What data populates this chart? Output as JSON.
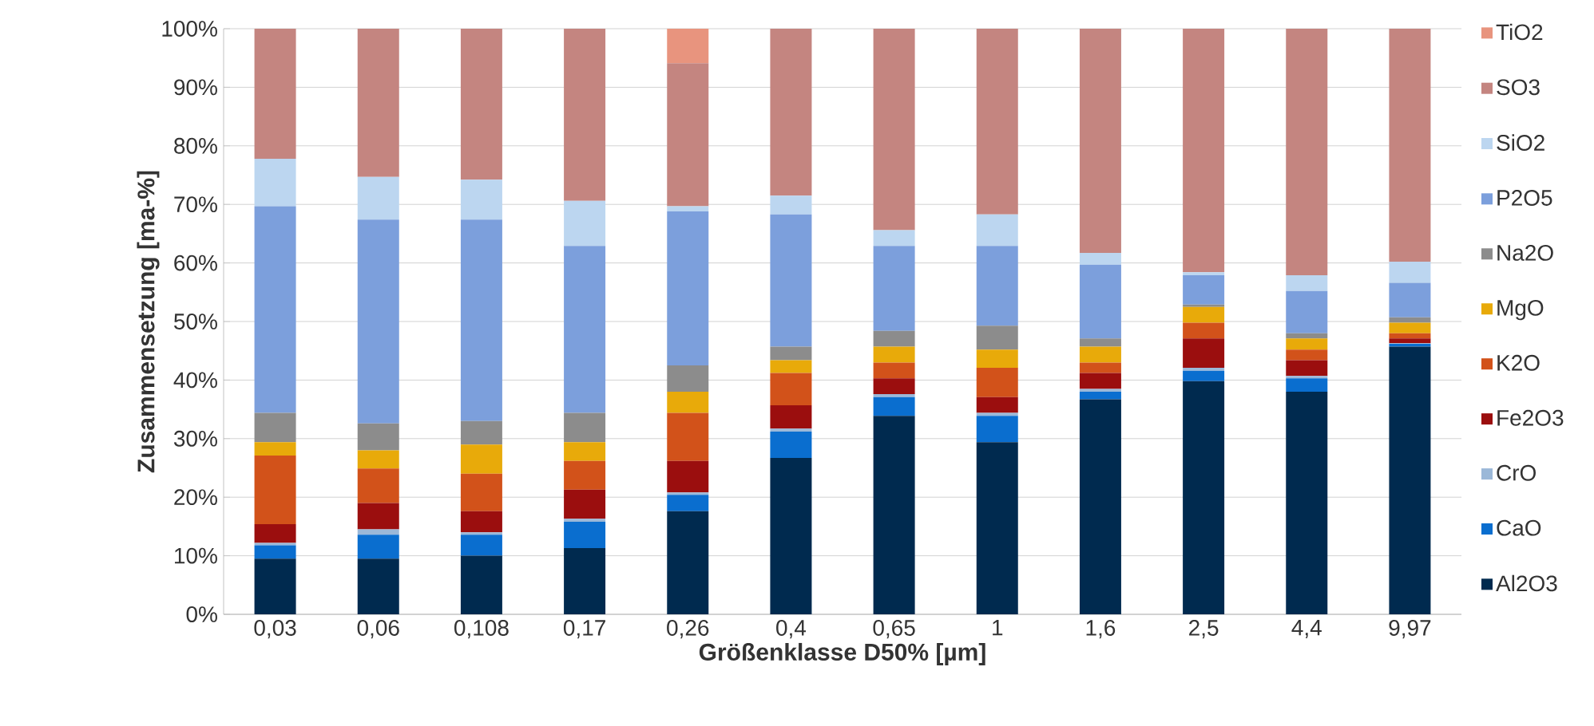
{
  "chart_data": {
    "type": "bar",
    "stacked": true,
    "xlabel": "Größenklasse D50% [µm]",
    "ylabel": "Zusammensetzung [ma-%]",
    "categories": [
      "0,03",
      "0,06",
      "0,108",
      "0,17",
      "0,26",
      "0,4",
      "0,65",
      "1",
      "1,6",
      "2,5",
      "4,4",
      "9,97"
    ],
    "ylim": [
      0,
      100
    ],
    "yticks": [
      {
        "value": 0,
        "label": "0%"
      },
      {
        "value": 10,
        "label": "10%"
      },
      {
        "value": 20,
        "label": "20%"
      },
      {
        "value": 30,
        "label": "30%"
      },
      {
        "value": 40,
        "label": "40%"
      },
      {
        "value": 50,
        "label": "50%"
      },
      {
        "value": 60,
        "label": "60%"
      },
      {
        "value": 70,
        "label": "70%"
      },
      {
        "value": 80,
        "label": "80%"
      },
      {
        "value": 90,
        "label": "90%"
      },
      {
        "value": 100,
        "label": "100%"
      }
    ],
    "grid": "y",
    "legend": "right",
    "series": [
      {
        "name": "Al2O3",
        "color": "#002a4f",
        "values": [
          9.5,
          9.5,
          10,
          11.3,
          17.6,
          26.7,
          33.9,
          29.4,
          36.7,
          39.8,
          38,
          45.7
        ]
      },
      {
        "name": "CaO",
        "color": "#0a6ecf",
        "values": [
          2.3,
          4.1,
          3.6,
          4.5,
          2.8,
          4.5,
          3.2,
          4.5,
          1.3,
          1.8,
          2.3,
          0.5
        ]
      },
      {
        "name": "CrO",
        "color": "#9bb8d8",
        "values": [
          0.4,
          0.9,
          0.4,
          0.5,
          0.4,
          0.5,
          0.5,
          0.5,
          0.5,
          0.5,
          0.4,
          0.1
        ]
      },
      {
        "name": "Fe2O3",
        "color": "#9b0e0e",
        "values": [
          3.2,
          4.5,
          3.6,
          5,
          5.4,
          4,
          2.7,
          2.7,
          2.7,
          5,
          2.7,
          0.8
        ]
      },
      {
        "name": "K2O",
        "color": "#d2521a",
        "values": [
          11.7,
          5.9,
          6.4,
          4.9,
          8.2,
          5.5,
          2.7,
          5,
          1.8,
          2.7,
          1.8,
          0.9
        ]
      },
      {
        "name": "MgO",
        "color": "#e8aa0a",
        "values": [
          2.3,
          3.1,
          5,
          3.2,
          3.6,
          2.2,
          2.7,
          3.1,
          2.7,
          2.7,
          1.9,
          1.8
        ]
      },
      {
        "name": "Na2O",
        "color": "#8c8c8c",
        "values": [
          5,
          4.6,
          4,
          5,
          4.5,
          2.3,
          2.7,
          4.1,
          1.4,
          0.4,
          0.9,
          0.9
        ]
      },
      {
        "name": "P2O5",
        "color": "#7c9fdc",
        "values": [
          35.3,
          34.8,
          34.4,
          28.5,
          26.3,
          22.6,
          14.5,
          13.6,
          12.6,
          5,
          7.2,
          5.9
        ]
      },
      {
        "name": "SiO2",
        "color": "#bcd6f0",
        "values": [
          8.1,
          7.3,
          6.8,
          7.7,
          0.9,
          3.2,
          2.7,
          5.4,
          2,
          0.5,
          2.7,
          3.6
        ]
      },
      {
        "name": "SO3",
        "color": "#c48580",
        "values": [
          22.2,
          25.3,
          25.8,
          29.4,
          24.4,
          28.5,
          34.4,
          31.7,
          38.3,
          41.6,
          42.1,
          39.8
        ]
      },
      {
        "name": "TiO2",
        "color": "#e8947e",
        "values": [
          0,
          0,
          0,
          0,
          5.9,
          0,
          0,
          0,
          0,
          0,
          0,
          0
        ]
      }
    ]
  }
}
